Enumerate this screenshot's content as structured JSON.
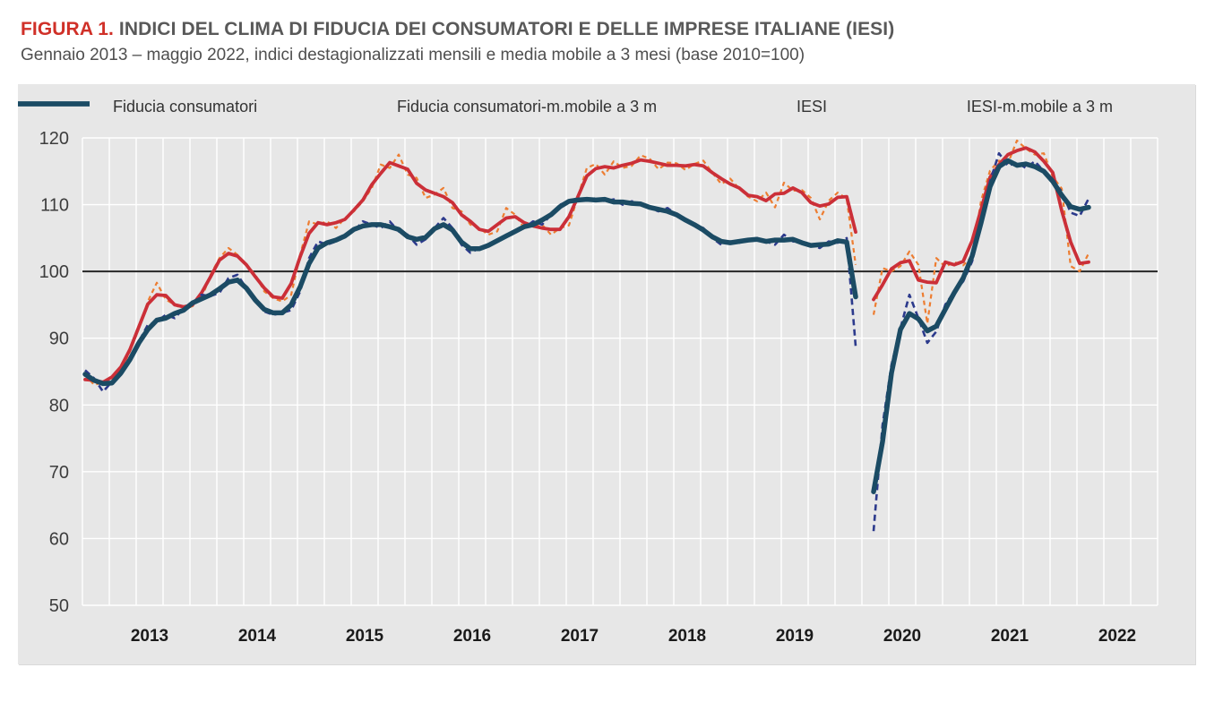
{
  "figure": {
    "label": "FIGURA 1.",
    "title": "INDICI DEL CLIMA DI FIDUCIA DEI CONSUMATORI E DELLE IMPRESE ITALIANE (IESI)",
    "subtitle": "Gennaio 2013 – maggio 2022, indici destagionalizzati mensili e media mobile a 3 mesi (base 2010=100)",
    "accent_color": "#d03028",
    "title_color": "#595959",
    "subtitle_color": "#4f4f4f"
  },
  "chart_data": {
    "type": "line",
    "x": {
      "start": "2013-01",
      "end": "2022-05",
      "frequency": "monthly",
      "points": 113,
      "gap": "2020-04"
    },
    "x_tick_labels": [
      "2013",
      "2014",
      "2015",
      "2016",
      "2017",
      "2018",
      "2019",
      "2020",
      "2021",
      "2022"
    ],
    "y_ticks": [
      50,
      60,
      70,
      80,
      90,
      100,
      110,
      120
    ],
    "ylim": [
      50,
      120
    ],
    "reference_line": {
      "value": 100,
      "color": "#262626"
    },
    "grid": {
      "vertical": "quarterly",
      "horizontal": "every 10",
      "color": "#ffffff"
    },
    "legend_position": "top",
    "panel_background": "#e7e7e7",
    "series": [
      {
        "name": "Fiducia consumatori",
        "color": "#ED7D31",
        "style": "dashed",
        "values": [
          84.6,
          83.0,
          83.4,
          83.8,
          85.3,
          88.0,
          91.5,
          95.5,
          98.3,
          95.8,
          95.0,
          94.3,
          94.8,
          96.0,
          99.5,
          102.0,
          103.5,
          102.5,
          101.0,
          99.5,
          97.0,
          96.0,
          95.5,
          96.5,
          102.5,
          107.5,
          107.0,
          107.5,
          106.5,
          108.0,
          109.0,
          110.5,
          112.5,
          116.0,
          115.5,
          117.5,
          114.5,
          114.0,
          111.0,
          111.5,
          112.5,
          109.5,
          109.0,
          107.0,
          106.5,
          105.5,
          106.0,
          109.5,
          108.5,
          106.5,
          107.0,
          107.0,
          105.5,
          106.5,
          106.9,
          111.2,
          115.5,
          116.1,
          114.5,
          116.5,
          115.5,
          115.8,
          117.4,
          116.9,
          115.3,
          116.3,
          116.2,
          115.2,
          116.1,
          116.6,
          114.8,
          113.1,
          113.9,
          112.4,
          111.2,
          110.5,
          111.8,
          109.6,
          113.3,
          112.1,
          112.2,
          111.0,
          107.8,
          110.6,
          111.8,
          110.9,
          101.0,
          null,
          93.5,
          100.5,
          100.0,
          100.8,
          103.0,
          101.0,
          92.2,
          102.0,
          100.7,
          101.4,
          100.9,
          102.3,
          110.6,
          115.1,
          116.6,
          116.2,
          119.6,
          118.4,
          117.5,
          117.7,
          114.2,
          112.4,
          100.8,
          100.0,
          102.7
        ]
      },
      {
        "name": "Fiducia consumatori-m.mobile a 3 m",
        "color": "#CB2F38",
        "style": "solid",
        "values": [
          83.8,
          83.7,
          83.4,
          84.2,
          85.7,
          88.3,
          91.7,
          95.1,
          96.5,
          96.4,
          95.0,
          94.7,
          95.0,
          96.8,
          99.2,
          101.7,
          102.7,
          102.3,
          101.0,
          99.2,
          97.5,
          96.2,
          96.0,
          98.2,
          102.2,
          105.7,
          107.3,
          107.0,
          107.3,
          107.8,
          109.2,
          110.7,
          113.0,
          114.7,
          116.3,
          115.8,
          115.3,
          113.2,
          112.2,
          111.7,
          111.2,
          110.3,
          108.5,
          107.5,
          106.3,
          106.0,
          107.0,
          108.0,
          108.2,
          107.3,
          106.8,
          106.5,
          106.3,
          106.3,
          108.2,
          111.2,
          114.3,
          115.4,
          115.7,
          115.5,
          115.9,
          116.2,
          116.7,
          116.5,
          116.2,
          115.9,
          115.9,
          115.8,
          116.0,
          115.8,
          114.8,
          113.9,
          113.1,
          112.5,
          111.4,
          111.2,
          110.6,
          111.6,
          111.7,
          112.5,
          111.8,
          110.3,
          109.8,
          110.1,
          111.1,
          111.2,
          105.9,
          null,
          95.8,
          98.0,
          100.4,
          101.3,
          101.6,
          98.7,
          98.4,
          98.3,
          101.4,
          101.0,
          101.5,
          104.6,
          109.3,
          114.1,
          116.0,
          117.5,
          118.1,
          118.5,
          117.9,
          116.5,
          114.8,
          109.1,
          104.4,
          101.2,
          101.4
        ]
      },
      {
        "name": "IESI",
        "color": "#2C3A8C",
        "style": "dashed",
        "values": [
          85.2,
          84.0,
          82.0,
          83.5,
          84.5,
          86.5,
          89.5,
          92.0,
          92.5,
          93.5,
          93.0,
          94.5,
          95.0,
          96.5,
          96.3,
          96.8,
          99.0,
          99.5,
          97.5,
          95.5,
          94.0,
          93.5,
          93.8,
          94.2,
          97.0,
          102.0,
          104.5,
          104.0,
          104.5,
          105.5,
          106.0,
          107.5,
          107.0,
          106.5,
          107.5,
          106.0,
          105.5,
          104.0,
          104.8,
          106.5,
          108.0,
          106.5,
          104.0,
          102.8,
          103.5,
          103.8,
          104.5,
          105.5,
          106.0,
          106.5,
          107.5,
          107.0,
          108.5,
          110.0,
          110.5,
          111.0,
          110.5,
          111.0,
          110.5,
          110.8,
          110.0,
          110.5,
          110.2,
          109.5,
          109.0,
          109.5,
          108.5,
          107.5,
          107.0,
          106.5,
          105.0,
          104.0,
          104.5,
          104.3,
          104.8,
          105.0,
          104.5,
          104.0,
          105.5,
          104.5,
          104.3,
          104.0,
          103.5,
          104.5,
          104.3,
          105.0,
          88.8,
          null,
          61.1,
          77.0,
          86.0,
          91.5,
          96.5,
          93.0,
          89.3,
          91.0,
          95.0,
          97.0,
          98.5,
          101.5,
          107.0,
          113.5,
          117.7,
          115.8,
          116.3,
          115.5,
          116.5,
          115.0,
          113.5,
          112.0,
          108.8,
          108.3,
          110.9
        ]
      },
      {
        "name": "IESI-m.mobile a 3 m",
        "color": "#1B4B64",
        "style": "solid",
        "values": [
          84.6,
          83.7,
          83.2,
          83.3,
          84.8,
          86.8,
          89.3,
          91.3,
          92.7,
          93.0,
          93.7,
          94.2,
          95.3,
          95.9,
          96.5,
          97.4,
          98.4,
          98.7,
          97.5,
          95.7,
          94.3,
          93.8,
          93.8,
          95.0,
          97.7,
          101.2,
          103.5,
          104.3,
          104.7,
          105.3,
          106.3,
          106.8,
          107.0,
          107.0,
          106.7,
          106.3,
          105.2,
          104.8,
          105.1,
          106.4,
          107.0,
          106.2,
          104.4,
          103.4,
          103.4,
          103.9,
          104.6,
          105.3,
          106.0,
          106.7,
          107.0,
          107.7,
          108.5,
          109.7,
          110.5,
          110.7,
          110.8,
          110.7,
          110.8,
          110.4,
          110.4,
          110.2,
          110.1,
          109.6,
          109.3,
          109.0,
          108.5,
          107.7,
          107.0,
          106.2,
          105.2,
          104.5,
          104.3,
          104.5,
          104.7,
          104.8,
          104.5,
          104.7,
          104.7,
          104.8,
          104.3,
          103.9,
          104.0,
          104.1,
          104.6,
          104.4,
          96.2,
          null,
          67.0,
          74.5,
          84.8,
          91.3,
          93.7,
          92.9,
          91.1,
          91.8,
          94.3,
          96.8,
          99.0,
          102.3,
          107.3,
          112.7,
          115.7,
          116.6,
          115.9,
          116.1,
          115.7,
          115.0,
          113.5,
          111.4,
          109.7,
          109.3,
          109.6
        ]
      }
    ]
  }
}
